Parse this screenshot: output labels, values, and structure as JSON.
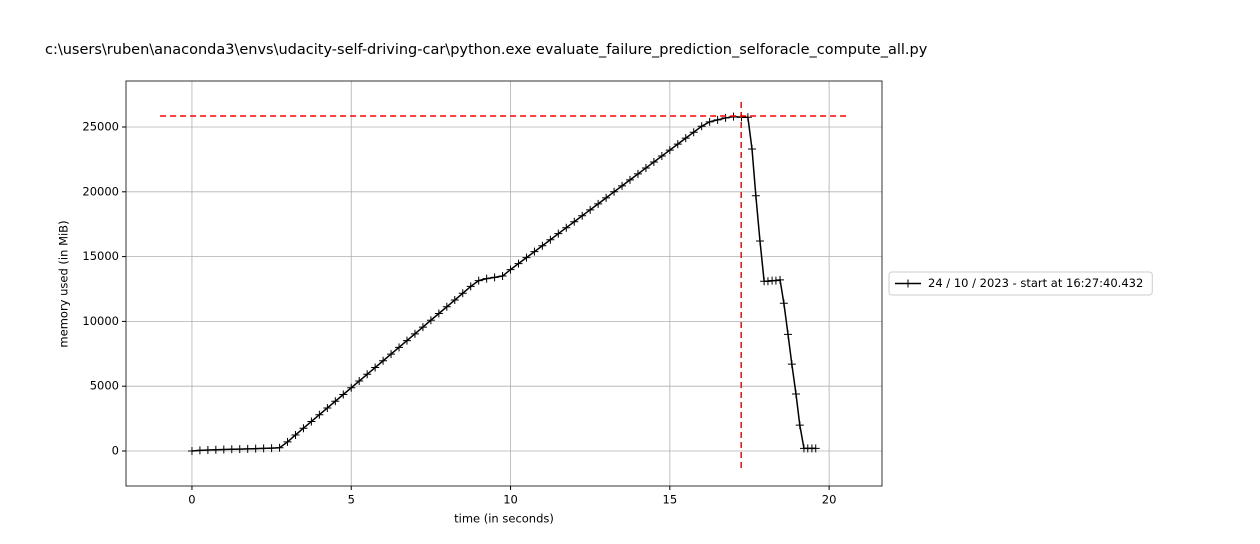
{
  "chart_data": {
    "type": "line",
    "title": "c:\\users\\ruben\\anaconda3\\envs\\udacity-self-driving-car\\python.exe evaluate_failure_prediction_selforacle_compute_all.py",
    "x_label": "time (in seconds)",
    "y_label": "memory used (in MiB)",
    "xlim": [
      -2.07,
      21.66
    ],
    "ylim": [
      -2700,
      28550
    ],
    "xticks": [
      0,
      5,
      10,
      15,
      20
    ],
    "yticks": [
      0,
      5000,
      10000,
      15000,
      20000,
      25000
    ],
    "grid": true,
    "legend": "right",
    "x": [
      0,
      0.25,
      0.5,
      0.75,
      1,
      1.25,
      1.5,
      1.75,
      2,
      2.25,
      2.5,
      2.75,
      3,
      3.25,
      3.5,
      3.75,
      4,
      4.25,
      4.5,
      4.75,
      5,
      5.25,
      5.5,
      5.75,
      6,
      6.25,
      6.5,
      6.75,
      7,
      7.25,
      7.5,
      7.75,
      8,
      8.25,
      8.5,
      8.75,
      9,
      9.25,
      9.5,
      9.75,
      10,
      10.25,
      10.5,
      10.75,
      11,
      11.25,
      11.5,
      11.75,
      12,
      12.25,
      12.5,
      12.75,
      13,
      13.25,
      13.5,
      13.75,
      14,
      14.25,
      14.5,
      14.75,
      15,
      15.25,
      15.5,
      15.75,
      16,
      16.25,
      16.5,
      16.75,
      17,
      17.25,
      17.45,
      17.58,
      17.7,
      17.83,
      17.96,
      18.08,
      18.21,
      18.33,
      18.46,
      18.58,
      18.71,
      18.83,
      18.96,
      19.08,
      19.21,
      19.33,
      19.46,
      19.58
    ],
    "series": [
      {
        "name": "24 / 10 / 2023 - start at 16:27:40.432",
        "color": "#000000",
        "marker": "+",
        "values": [
          0,
          50,
          80,
          100,
          120,
          140,
          150,
          160,
          180,
          200,
          220,
          250,
          700,
          1240,
          1760,
          2280,
          2800,
          3320,
          3840,
          4360,
          4880,
          5400,
          5920,
          6440,
          6960,
          7480,
          8000,
          8520,
          9040,
          9560,
          10090,
          10610,
          11130,
          11650,
          12170,
          12700,
          13150,
          13300,
          13400,
          13500,
          14000,
          14460,
          14920,
          15380,
          15840,
          16300,
          16770,
          17230,
          17690,
          18150,
          18610,
          19070,
          19530,
          20000,
          20460,
          20920,
          21380,
          21840,
          22300,
          22760,
          23220,
          23680,
          24140,
          24600,
          25060,
          25400,
          25550,
          25700,
          25800,
          25750,
          25750,
          23300,
          19700,
          16200,
          13100,
          13100,
          13150,
          13150,
          13200,
          11400,
          9000,
          6700,
          4400,
          2000,
          200,
          200,
          200,
          200
        ]
      }
    ],
    "max_memory_line": {
      "y": 25850,
      "x": [
        -1.0,
        20.6
      ],
      "color": "#ff0000"
    },
    "max_time_line": {
      "x": 17.24,
      "y": [
        -1310,
        27160
      ],
      "color": "#ff0000"
    }
  }
}
